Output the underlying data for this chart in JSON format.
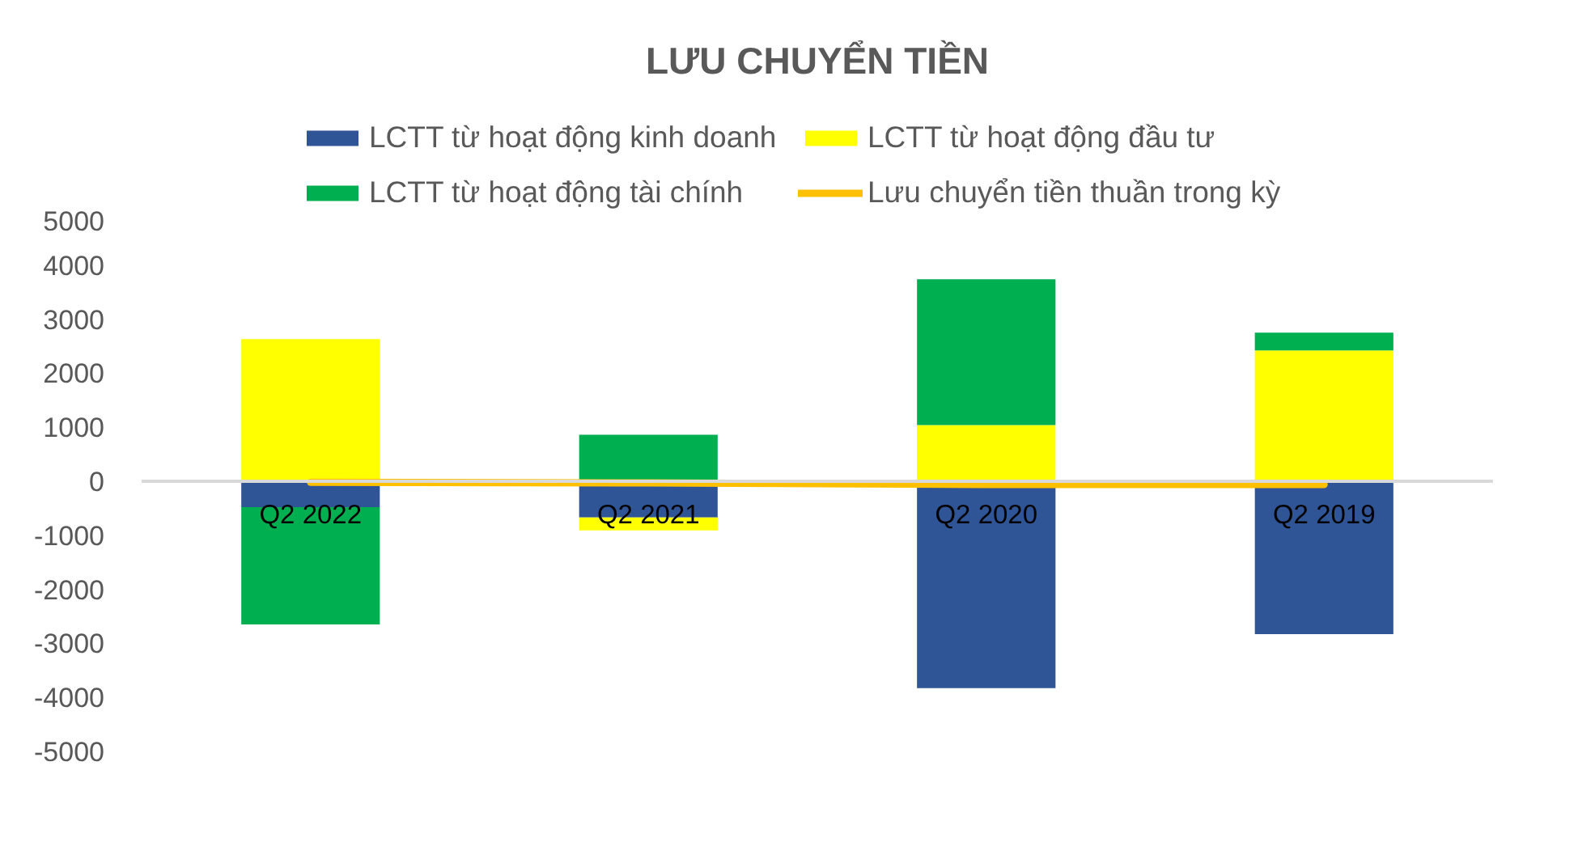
{
  "chart_data": {
    "type": "bar",
    "title": "LƯU CHUYỂN TIỀN",
    "categories": [
      "Q2 2022",
      "Q2 2021",
      "Q2 2020",
      "Q2 2019"
    ],
    "stacked": true,
    "series": [
      {
        "name": "LCTT từ hoạt động kinh doanh",
        "color": "#2f5597",
        "values": [
          -480,
          -670,
          -3830,
          -2830
        ]
      },
      {
        "name": "LCTT từ hoạt động đầu tư",
        "color": "#ffff00",
        "values": [
          2630,
          -240,
          1040,
          2420
        ]
      },
      {
        "name": "LCTT từ hoạt động tài chính",
        "color": "#00b050",
        "values": [
          -2170,
          860,
          2700,
          330
        ]
      },
      {
        "name": "Lưu chuyển tiền thuần trong kỳ",
        "type": "line",
        "color": "#ffc000",
        "values": [
          -20,
          -30,
          -60,
          -60
        ]
      }
    ],
    "ylim": [
      -5000,
      5000
    ],
    "yticks": [
      -5000,
      -4000,
      -3000,
      -2000,
      -1000,
      0,
      1000,
      2000,
      3000,
      4000,
      5000
    ],
    "legend": "top"
  }
}
